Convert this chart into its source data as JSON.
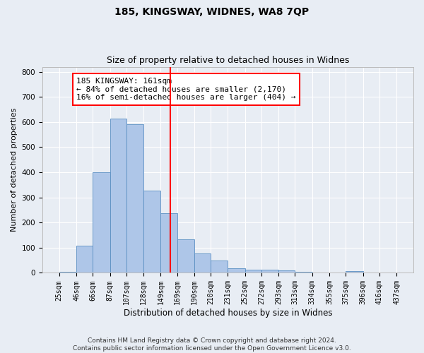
{
  "title": "185, KINGSWAY, WIDNES, WA8 7QP",
  "subtitle": "Size of property relative to detached houses in Widnes",
  "xlabel": "Distribution of detached houses by size in Widnes",
  "ylabel": "Number of detached properties",
  "footnote1": "Contains HM Land Registry data © Crown copyright and database right 2024.",
  "footnote2": "Contains public sector information licensed under the Open Government Licence v3.0.",
  "bar_edges": [
    25,
    46,
    66,
    87,
    107,
    128,
    149,
    169,
    190,
    210,
    231,
    252,
    272,
    293,
    313,
    334,
    355,
    375,
    396,
    416,
    437
  ],
  "bar_heights": [
    5,
    107,
    400,
    613,
    590,
    328,
    237,
    133,
    77,
    50,
    17,
    12,
    12,
    10,
    4,
    0,
    0,
    7,
    0,
    0
  ],
  "bar_color": "#aec6e8",
  "bar_edge_color": "#5a8fc2",
  "vline_x": 161,
  "vline_color": "red",
  "annotation_text": "185 KINGSWAY: 161sqm\n← 84% of detached houses are smaller (2,170)\n16% of semi-detached houses are larger (404) →",
  "annotation_box_color": "white",
  "annotation_box_edge_color": "red",
  "ylim": [
    0,
    820
  ],
  "yticks": [
    0,
    100,
    200,
    300,
    400,
    500,
    600,
    700,
    800
  ],
  "background_color": "#e8edf4",
  "grid_color": "white",
  "title_fontsize": 10,
  "subtitle_fontsize": 9,
  "tick_label_fontsize": 7,
  "ylabel_fontsize": 8,
  "xlabel_fontsize": 8.5,
  "footnote_fontsize": 6.5
}
